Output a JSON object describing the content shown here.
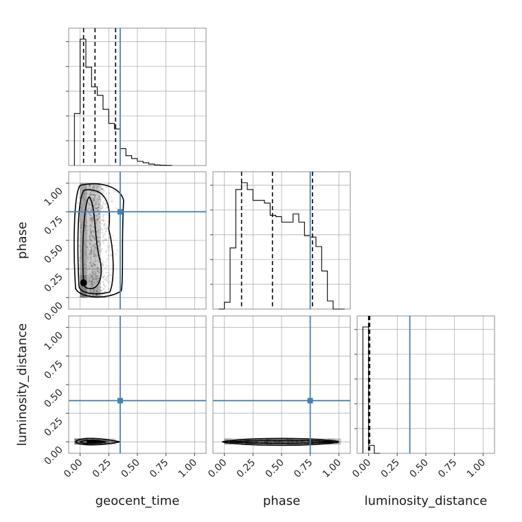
{
  "chart_data": {
    "type": "corner",
    "parameters": [
      "geocent_time",
      "phase",
      "luminosity_distance"
    ],
    "axis_range": [
      -0.1,
      1.1
    ],
    "ticks": [
      0.0,
      0.25,
      0.5,
      0.75,
      1.0
    ],
    "tick_labels": [
      "0.00",
      "0.25",
      "0.50",
      "0.75",
      "1.00"
    ],
    "truths": {
      "geocent_time": 0.35,
      "phase": 0.75,
      "luminosity_distance": 0.36
    },
    "truth_color": "#4682b4",
    "grid": true,
    "quantiles": {
      "geocent_time": [
        0.03,
        0.13,
        0.31
      ],
      "phase": [
        0.15,
        0.42,
        0.77
      ],
      "luminosity_distance": [
        0.0,
        0.003,
        0.01
      ]
    },
    "histograms": {
      "geocent_time": {
        "edges": [
          -0.05,
          0.0,
          0.05,
          0.1,
          0.15,
          0.2,
          0.25,
          0.3,
          0.35,
          0.4,
          0.45,
          0.5,
          0.55,
          0.6,
          0.65,
          0.7,
          0.75,
          0.8
        ],
        "values": [
          0.37,
          0.9,
          0.7,
          0.56,
          0.5,
          0.4,
          0.3,
          0.26,
          0.12,
          0.07,
          0.05,
          0.03,
          0.02,
          0.01,
          0.004,
          0.002,
          0.001
        ]
      },
      "phase": {
        "edges": [
          -0.05,
          0.0,
          0.05,
          0.1,
          0.15,
          0.2,
          0.25,
          0.3,
          0.35,
          0.4,
          0.45,
          0.5,
          0.55,
          0.6,
          0.65,
          0.7,
          0.75,
          0.8,
          0.85,
          0.9,
          0.95,
          1.0,
          1.05
        ],
        "values": [
          0.0,
          0.05,
          0.45,
          0.88,
          0.93,
          0.88,
          0.8,
          0.8,
          0.78,
          0.69,
          0.68,
          0.64,
          0.64,
          0.7,
          0.64,
          0.54,
          0.53,
          0.46,
          0.28,
          0.06,
          0.0,
          0.0
        ]
      },
      "luminosity_distance": {
        "edges": [
          -0.05,
          0.0,
          0.05,
          0.1
        ],
        "values": [
          0.95,
          0.06,
          0.0
        ]
      }
    },
    "scatter_2d": {
      "phase_vs_geocent_time": {
        "x_center": 0.1,
        "x_spread": 0.35,
        "y_range": [
          0.0,
          1.0
        ]
      },
      "luminosity_distance_vs_geocent_time": {
        "x_center": 0.1,
        "x_spread": 0.3,
        "y_center": 0.0
      },
      "luminosity_distance_vs_phase": {
        "x_range": [
          0.0,
          1.0
        ],
        "y_center": 0.0
      }
    }
  }
}
